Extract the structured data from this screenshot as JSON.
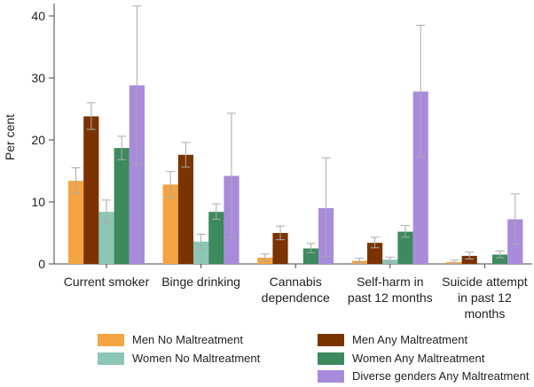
{
  "chart_data": {
    "type": "bar",
    "ylabel": "Per cent",
    "xlabel": "",
    "ylim": [
      0,
      42
    ],
    "yticks": [
      0,
      10,
      20,
      30,
      40
    ],
    "grid": false,
    "error_bars": true,
    "categories": [
      [
        "Current smoker"
      ],
      [
        "Binge drinking"
      ],
      [
        "Cannabis",
        "dependence"
      ],
      [
        "Self-harm in",
        "past 12 months"
      ],
      [
        "Suicide attempt",
        "in past 12",
        "months"
      ]
    ],
    "series": [
      {
        "name": "Men No Maltreatment",
        "color": "#f4a443",
        "values": [
          13.4,
          12.8,
          1.0,
          0.5,
          0.3
        ],
        "err_low": [
          11.4,
          10.7,
          0.5,
          0.2,
          0.1
        ],
        "err_high": [
          15.5,
          14.9,
          1.6,
          0.9,
          0.6
        ]
      },
      {
        "name": "Men Any Maltreatment",
        "color": "#7b3300",
        "values": [
          23.8,
          17.6,
          5.0,
          3.4,
          1.3
        ],
        "err_low": [
          21.7,
          15.6,
          3.9,
          2.6,
          0.8
        ],
        "err_high": [
          26.0,
          19.6,
          6.1,
          4.3,
          1.9
        ]
      },
      {
        "name": "Women No Maltreatment",
        "color": "#8dc6b6",
        "values": [
          8.4,
          3.6,
          0.0,
          0.7,
          0.0
        ],
        "err_low": [
          6.6,
          2.4,
          0.0,
          0.3,
          0.0
        ],
        "err_high": [
          10.3,
          4.8,
          0.0,
          1.1,
          0.0
        ]
      },
      {
        "name": "Women Any Maltreatment",
        "color": "#3d8a5f",
        "values": [
          18.7,
          8.4,
          2.5,
          5.2,
          1.5
        ],
        "err_low": [
          16.8,
          7.2,
          1.8,
          4.3,
          1.0
        ],
        "err_high": [
          20.6,
          9.7,
          3.3,
          6.2,
          2.1
        ]
      },
      {
        "name": "Diverse genders Any Maltreatment",
        "color": "#a98bdc",
        "values": [
          28.8,
          14.2,
          9.0,
          27.8,
          7.2
        ],
        "err_low": [
          16.0,
          4.2,
          1.2,
          17.2,
          3.2
        ],
        "err_high": [
          41.6,
          24.3,
          17.1,
          38.5,
          11.3
        ]
      }
    ],
    "legend_position": "bottom"
  },
  "legend": [
    {
      "label": "Men No Maltreatment"
    },
    {
      "label": "Men Any Maltreatment"
    },
    {
      "label": "Women No Maltreatment"
    },
    {
      "label": "Women Any Maltreatment"
    },
    {
      "label": "Diverse genders Any Maltreatment"
    }
  ]
}
